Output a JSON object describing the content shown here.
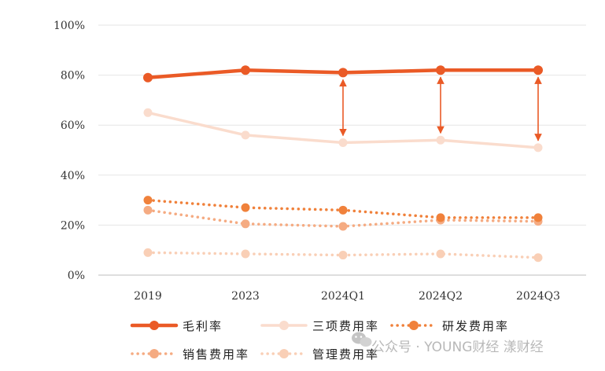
{
  "chart_data": {
    "type": "line",
    "categories": [
      "2019",
      "2023",
      "2024Q1",
      "2024Q2",
      "2024Q3"
    ],
    "y_ticks": [
      "0%",
      "20%",
      "40%",
      "60%",
      "80%",
      "100%"
    ],
    "ylim": [
      0,
      100
    ],
    "grid": true,
    "legend_position": "bottom",
    "series": [
      {
        "name": "毛利率",
        "values": [
          79,
          82,
          81,
          82,
          82
        ],
        "color": "#ea5a26",
        "style": "solid-thick"
      },
      {
        "name": "三项费用率",
        "values": [
          65,
          56,
          53,
          54,
          51
        ],
        "color": "#fadccd",
        "style": "solid"
      },
      {
        "name": "研发费用率",
        "values": [
          30,
          27,
          26,
          23,
          23
        ],
        "color": "#f0813b",
        "style": "dotted"
      },
      {
        "name": "销售费用率",
        "values": [
          26,
          20.5,
          19.5,
          22,
          21.5
        ],
        "color": "#f5ab82",
        "style": "dotted"
      },
      {
        "name": "管理费用率",
        "values": [
          9,
          8.5,
          8,
          8.5,
          7
        ],
        "color": "#f9cfb6",
        "style": "dotted"
      }
    ],
    "annotations": [
      {
        "type": "double-arrow",
        "category": "2024Q1",
        "from_series": "毛利率",
        "to_series": "三项费用率",
        "color": "#ea5a26"
      },
      {
        "type": "double-arrow",
        "category": "2024Q2",
        "from_series": "毛利率",
        "to_series": "三项费用率",
        "color": "#ea5a26"
      },
      {
        "type": "double-arrow",
        "category": "2024Q3",
        "from_series": "毛利率",
        "to_series": "三项费用率",
        "color": "#ea5a26"
      }
    ]
  },
  "watermark": {
    "icon": "wechat-icon",
    "text": "公众号 · YOUNG财经 漾财经"
  }
}
